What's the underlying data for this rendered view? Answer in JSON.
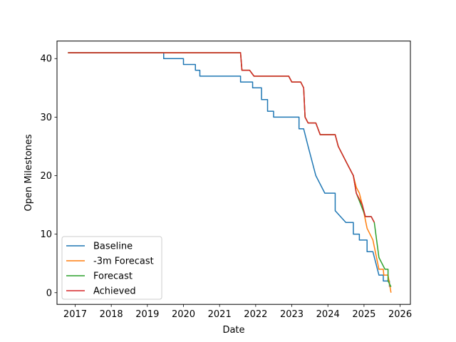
{
  "chart_data": {
    "type": "line",
    "title": "",
    "xlabel": "Date",
    "ylabel": "Open Milestones",
    "xlim": [
      "2016-07-01",
      "2026-04-15"
    ],
    "ylim": [
      -2,
      43
    ],
    "x_ticks": [
      "2017",
      "2018",
      "2019",
      "2020",
      "2021",
      "2022",
      "2023",
      "2024",
      "2025",
      "2026"
    ],
    "y_ticks": [
      0,
      10,
      20,
      30,
      40
    ],
    "grid": false,
    "legend": {
      "position": "lower-left"
    },
    "colors": {
      "Baseline": "#1f77b4",
      "-3m Forecast": "#ff7f0e",
      "Forecast": "#2ca02c",
      "Achieved": "#d62728"
    },
    "series": [
      {
        "name": "Baseline",
        "points": [
          [
            "2016-10-20",
            41
          ],
          [
            "2019-06-15",
            41
          ],
          [
            "2019-06-15",
            40
          ],
          [
            "2020-01-01",
            40
          ],
          [
            "2020-01-01",
            39
          ],
          [
            "2020-05-01",
            39
          ],
          [
            "2020-05-01",
            38
          ],
          [
            "2020-06-15",
            38
          ],
          [
            "2020-06-15",
            37
          ],
          [
            "2021-08-01",
            37
          ],
          [
            "2021-08-01",
            36
          ],
          [
            "2021-12-01",
            36
          ],
          [
            "2021-12-01",
            35
          ],
          [
            "2022-03-01",
            35
          ],
          [
            "2022-03-01",
            33
          ],
          [
            "2022-05-01",
            33
          ],
          [
            "2022-05-01",
            31
          ],
          [
            "2022-07-01",
            31
          ],
          [
            "2022-07-01",
            30
          ],
          [
            "2023-03-15",
            30
          ],
          [
            "2023-03-15",
            28
          ],
          [
            "2023-05-01",
            28
          ],
          [
            "2023-06-15",
            25
          ],
          [
            "2023-09-01",
            20
          ],
          [
            "2023-12-01",
            17
          ],
          [
            "2024-03-15",
            17
          ],
          [
            "2024-03-15",
            14
          ],
          [
            "2024-07-01",
            12
          ],
          [
            "2024-09-15",
            12
          ],
          [
            "2024-09-15",
            10
          ],
          [
            "2024-11-15",
            10
          ],
          [
            "2024-11-15",
            9
          ],
          [
            "2025-02-01",
            9
          ],
          [
            "2025-02-01",
            7
          ],
          [
            "2025-04-01",
            7
          ],
          [
            "2025-06-01",
            3
          ],
          [
            "2025-07-15",
            3
          ],
          [
            "2025-07-15",
            2
          ],
          [
            "2025-09-15",
            2
          ],
          [
            "2025-09-15",
            1
          ]
        ]
      },
      {
        "name": "-3m Forecast",
        "points": [
          [
            "2016-10-20",
            41
          ],
          [
            "2021-08-01",
            41
          ],
          [
            "2021-08-15",
            38
          ],
          [
            "2021-11-01",
            38
          ],
          [
            "2021-12-15",
            37
          ],
          [
            "2022-12-01",
            37
          ],
          [
            "2023-01-01",
            36
          ],
          [
            "2023-04-01",
            36
          ],
          [
            "2023-05-01",
            35
          ],
          [
            "2023-05-15",
            30
          ],
          [
            "2023-06-15",
            29
          ],
          [
            "2023-09-01",
            29
          ],
          [
            "2023-10-15",
            27
          ],
          [
            "2024-03-15",
            27
          ],
          [
            "2024-04-15",
            25
          ],
          [
            "2024-07-15",
            22
          ],
          [
            "2024-09-15",
            20
          ],
          [
            "2024-10-15",
            18
          ],
          [
            "2024-11-15",
            17
          ],
          [
            "2024-12-15",
            15
          ],
          [
            "2025-02-01",
            11
          ],
          [
            "2025-04-01",
            9
          ],
          [
            "2025-06-01",
            4
          ],
          [
            "2025-07-15",
            4
          ],
          [
            "2025-07-20",
            3
          ],
          [
            "2025-09-01",
            3
          ],
          [
            "2025-10-01",
            0
          ]
        ]
      },
      {
        "name": "Forecast",
        "points": [
          [
            "2016-10-20",
            41
          ],
          [
            "2021-08-01",
            41
          ],
          [
            "2021-08-15",
            38
          ],
          [
            "2021-11-01",
            38
          ],
          [
            "2021-12-15",
            37
          ],
          [
            "2022-12-01",
            37
          ],
          [
            "2023-01-01",
            36
          ],
          [
            "2023-04-01",
            36
          ],
          [
            "2023-05-01",
            35
          ],
          [
            "2023-05-15",
            30
          ],
          [
            "2023-06-15",
            29
          ],
          [
            "2023-09-01",
            29
          ],
          [
            "2023-10-15",
            27
          ],
          [
            "2024-03-15",
            27
          ],
          [
            "2024-04-15",
            25
          ],
          [
            "2024-07-15",
            22
          ],
          [
            "2024-09-15",
            20
          ],
          [
            "2024-10-15",
            17
          ],
          [
            "2024-12-01",
            15
          ],
          [
            "2025-01-15",
            13
          ],
          [
            "2025-03-15",
            13
          ],
          [
            "2025-04-15",
            12
          ],
          [
            "2025-06-01",
            6
          ],
          [
            "2025-08-01",
            4
          ],
          [
            "2025-09-01",
            4
          ],
          [
            "2025-09-01",
            2
          ],
          [
            "2025-10-01",
            1
          ]
        ]
      },
      {
        "name": "Achieved",
        "points": [
          [
            "2016-10-20",
            41
          ],
          [
            "2021-08-01",
            41
          ],
          [
            "2021-08-15",
            38
          ],
          [
            "2021-11-01",
            38
          ],
          [
            "2021-12-15",
            37
          ],
          [
            "2022-12-01",
            37
          ],
          [
            "2023-01-01",
            36
          ],
          [
            "2023-04-01",
            36
          ],
          [
            "2023-05-01",
            35
          ],
          [
            "2023-05-15",
            30
          ],
          [
            "2023-06-15",
            29
          ],
          [
            "2023-09-01",
            29
          ],
          [
            "2023-10-15",
            27
          ],
          [
            "2024-03-15",
            27
          ],
          [
            "2024-04-15",
            25
          ],
          [
            "2024-07-15",
            22
          ],
          [
            "2024-09-15",
            20
          ],
          [
            "2024-10-15",
            17
          ],
          [
            "2024-12-15",
            15
          ],
          [
            "2025-01-15",
            13
          ],
          [
            "2025-03-15",
            13
          ],
          [
            "2025-04-15",
            12
          ]
        ]
      }
    ]
  }
}
